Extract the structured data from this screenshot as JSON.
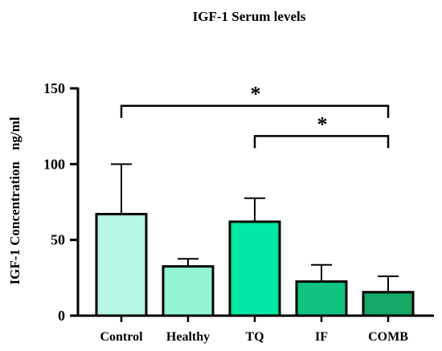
{
  "chart_data": {
    "type": "bar",
    "title": "IGF-1 Serum levels",
    "ylabel": "IGF-1 Concentration",
    "yunit": "ng/ml",
    "categories": [
      "Control",
      "Healthy",
      "TQ",
      "IF",
      "COMB"
    ],
    "values": [
      67,
      32.5,
      62,
      22.5,
      15.5
    ],
    "error_plus": [
      33,
      5,
      15.5,
      11,
      10.5
    ],
    "colors": [
      "#b7f5e5",
      "#93f5d6",
      "#00e6a4",
      "#10c280",
      "#14a765"
    ],
    "ylim": [
      0,
      150
    ],
    "yticks": [
      "0",
      "50",
      "100",
      "150"
    ],
    "significance": [
      {
        "from": "Control",
        "to": "COMB",
        "label": "*"
      },
      {
        "from": "TQ",
        "to": "COMB",
        "label": "*"
      }
    ]
  }
}
